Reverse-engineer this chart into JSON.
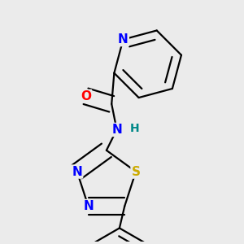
{
  "background_color": "#ebebeb",
  "atom_colors": {
    "N": "#0000ff",
    "O": "#ff0000",
    "S": "#ccaa00",
    "C": "#000000",
    "H": "#008888"
  },
  "bond_color": "#000000",
  "bond_width": 1.6,
  "font_size_atoms": 11,
  "font_size_H": 10
}
